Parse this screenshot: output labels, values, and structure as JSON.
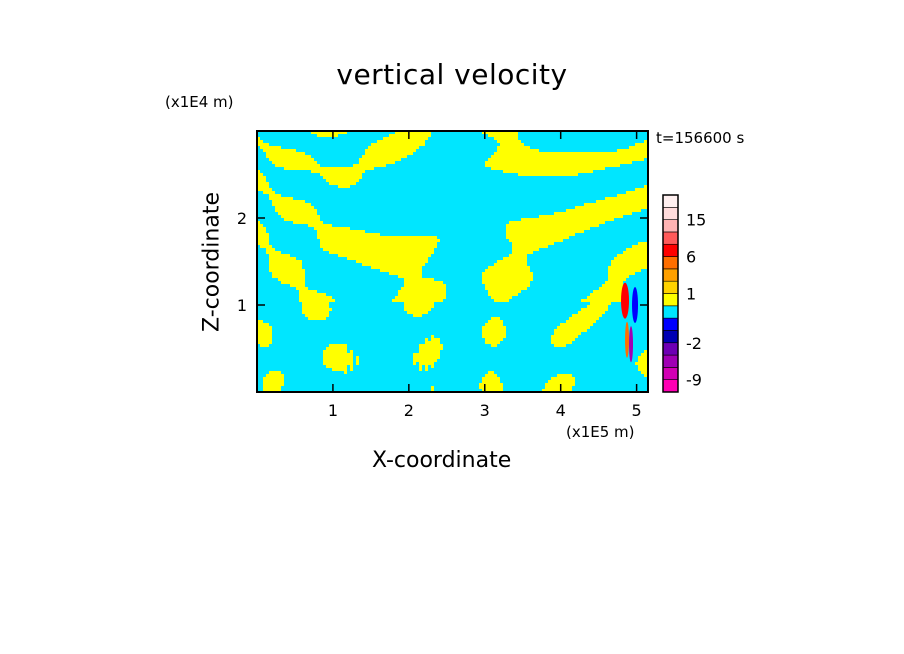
{
  "chart_data": {
    "type": "heatmap",
    "title": "vertical velocity",
    "xlabel": "X-coordinate",
    "ylabel": "Z-coordinate",
    "x_unit": "(x1E5 m)",
    "y_unit": "(x1E4 m)",
    "time_label": "t=156600 s",
    "xlim": [
      0,
      5.15
    ],
    "ylim": [
      0,
      3.0
    ],
    "x_ticks": [
      1,
      2,
      3,
      4,
      5
    ],
    "y_ticks": [
      1,
      2
    ],
    "colorbar": {
      "levels": [
        -12,
        -9,
        -6,
        -4,
        -2,
        -1,
        -0.5,
        0.5,
        1,
        2,
        4,
        6,
        9,
        12,
        15,
        20,
        25
      ],
      "colors": [
        "#ff00b4",
        "#d200b4",
        "#a000b4",
        "#6e00b4",
        "#0000b4",
        "#0000ff",
        "#00e6ff",
        "#ffff00",
        "#ffd200",
        "#ffa000",
        "#ff6e00",
        "#ff0000",
        "#ff5a5a",
        "#ffb4b4",
        "#ffdcdc",
        "#fff0f0"
      ],
      "tick_labels": [
        "15",
        "6",
        "1",
        "-2",
        "-9"
      ],
      "tick_values": [
        15,
        6,
        1,
        -2,
        -9
      ]
    },
    "field_description_colors": {
      "positive": "#ffff00",
      "negative": "#00e6ff"
    }
  }
}
